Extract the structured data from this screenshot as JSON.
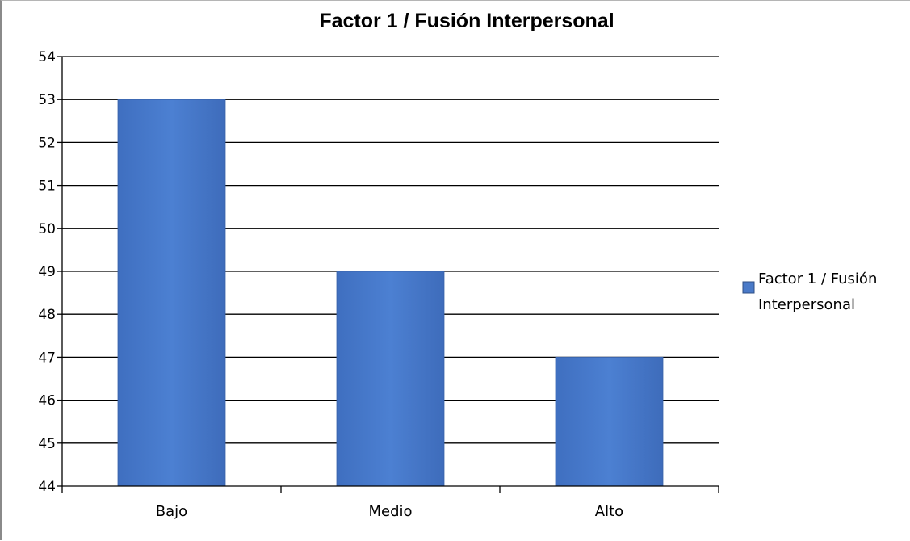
{
  "chart_data": {
    "type": "bar",
    "title": "Factor 1 / Fusión Interpersonal",
    "categories": [
      "Bajo",
      "Medio",
      "Alto"
    ],
    "series": [
      {
        "name": "Factor 1 / Fusión Interpersonal",
        "values": [
          53,
          49,
          47
        ]
      }
    ],
    "ylim": [
      44,
      54
    ],
    "yticks": [
      "44",
      "45",
      "46",
      "47",
      "48",
      "49",
      "50",
      "51",
      "52",
      "53",
      "54"
    ],
    "grid": true,
    "legend": {
      "position": "right",
      "lines": [
        "Factor 1 / Fusión",
        "Interpersonal"
      ]
    },
    "colors": {
      "bar": "#4a7ac8",
      "bar_edge": "#3a64ac",
      "grid": "#000000"
    }
  }
}
